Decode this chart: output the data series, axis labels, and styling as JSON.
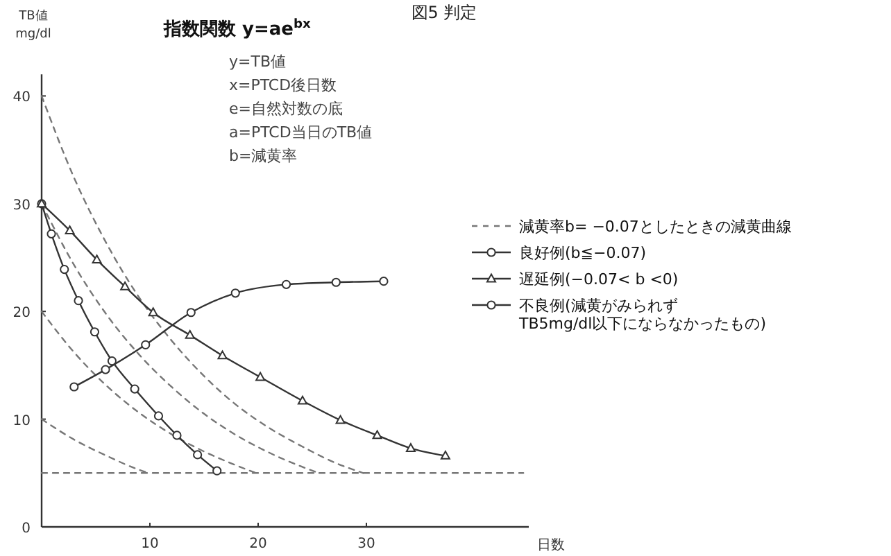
{
  "chart_data": {
    "type": "line",
    "title": "図5 判定",
    "xlabel": "日数",
    "ylabel": "TB値 mg/dl",
    "annotations": [
      "指数関数 y=ae$^{bx}$",
      "y=TB値",
      "x=PTCD後日数",
      "e=自然対数の底",
      "a=PTCD当日のTB値",
      "b=減黄率"
    ],
    "xlim": [
      0,
      45
    ],
    "ylim": [
      0,
      42
    ],
    "xticks": [
      10,
      20,
      30
    ],
    "yticks": [
      0,
      10,
      20,
      30,
      40
    ],
    "legend": "right",
    "grid": false,
    "series": [
      {
        "name": "減黄率b= −0.07としたときの減黄曲線",
        "color": "#777777",
        "line_style": "dashed",
        "marker": "none",
        "x": [
          0,
          3,
          6,
          9,
          12,
          15,
          18,
          21,
          24,
          27,
          29.7
        ],
        "values": [
          40,
          32.4,
          26.3,
          21.3,
          17.3,
          14.0,
          11.3,
          9.2,
          7.5,
          6.0,
          5
        ]
      },
      {
        "color": "#777777",
        "line_style": "dashed",
        "marker": "none",
        "x": [
          0,
          3,
          6,
          9,
          12,
          15,
          18,
          21,
          24,
          25.6
        ],
        "values": [
          30,
          24.3,
          19.7,
          16.0,
          13.0,
          10.5,
          8.5,
          6.9,
          5.6,
          5
        ]
      },
      {
        "color": "#777777",
        "line_style": "dashed",
        "marker": "none",
        "x": [
          0,
          3,
          6,
          9,
          12,
          15,
          18,
          19.8
        ],
        "values": [
          20,
          16.2,
          13.1,
          10.6,
          8.6,
          7.0,
          5.7,
          5
        ]
      },
      {
        "color": "#777777",
        "line_style": "dashed",
        "marker": "none",
        "x": [
          0,
          3,
          6,
          9,
          9.9
        ],
        "values": [
          10,
          8.1,
          6.6,
          5.3,
          5
        ]
      },
      {
        "color": "#777777",
        "line_style": "dashed",
        "marker": "none",
        "x": [
          0,
          44.5
        ],
        "values": [
          5,
          5
        ]
      },
      {
        "name": "良好例(b≦−0.07)",
        "color": "#333333",
        "line_style": "solid",
        "marker": "circle",
        "x": [
          0,
          0.9,
          2.1,
          3.4,
          4.9,
          6.5,
          8.6,
          10.8,
          12.5,
          14.4,
          16.2
        ],
        "values": [
          30,
          27.2,
          23.9,
          21.0,
          18.1,
          15.4,
          12.8,
          10.3,
          8.5,
          6.7,
          5.2
        ]
      },
      {
        "name": "遅延例(−0.07< b <0)",
        "color": "#333333",
        "line_style": "solid",
        "marker": "triangle",
        "x": [
          0,
          2.6,
          5.1,
          7.7,
          10.3,
          13.7,
          16.7,
          20.2,
          24.1,
          27.6,
          31.0,
          34.1,
          37.3
        ],
        "values": [
          30,
          27.5,
          24.8,
          22.3,
          19.9,
          17.8,
          15.9,
          13.9,
          11.7,
          9.9,
          8.5,
          7.3,
          6.6
        ]
      },
      {
        "name": "不良例(減黄がみられず TB5mg/dl以下にならなかったもの)",
        "color": "#333333",
        "line_style": "solid",
        "marker": "circle",
        "x": [
          3.0,
          5.9,
          9.6,
          13.8,
          17.9,
          22.6,
          27.2,
          31.6
        ],
        "values": [
          13.0,
          14.6,
          16.9,
          19.9,
          21.7,
          22.5,
          22.7,
          22.8
        ]
      }
    ]
  }
}
